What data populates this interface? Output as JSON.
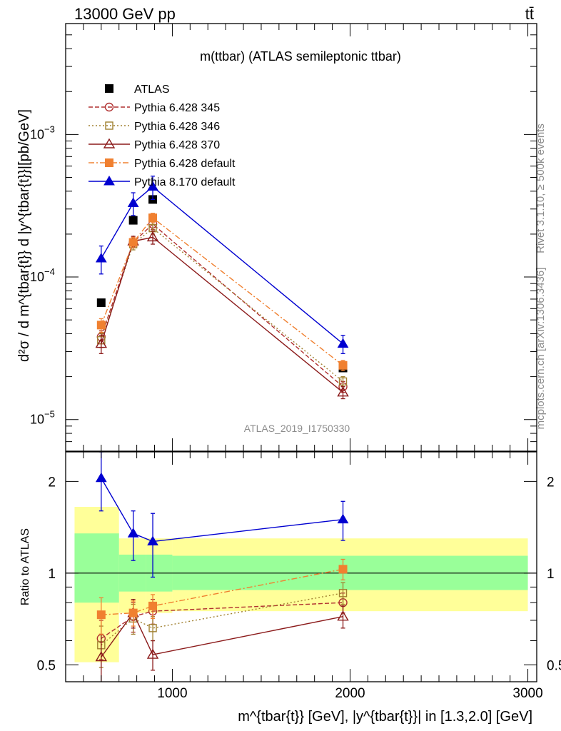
{
  "header": {
    "left": "13000 GeV pp",
    "right": "tt̄"
  },
  "side_labels": {
    "rivet": "Rivet 3.1.10, ≥ 500k events",
    "mcplots": "mcplots.cern.ch [arXiv:1306.3436]"
  },
  "chart_data": [
    {
      "type": "line",
      "panel": "main",
      "title": "m(ttbar) (ATLAS semileptonic ttbar)",
      "watermark": "ATLAS_2019_I1750330",
      "ylabel": "d²σ / d m^{tbar{t}} d |y^{tbar{t}}|[pb/GeV]",
      "yscale": "log",
      "ylim": [
        6e-06,
        0.006
      ],
      "xlim": [
        400,
        3050
      ],
      "ytick_labels": [
        "10^{-5}",
        "10^{-4}",
        "10^{-3}"
      ],
      "legend_position": "top-left",
      "bins": [
        {
          "x": 600,
          "lo": 450,
          "hi": 700
        },
        {
          "x": 780,
          "lo": 700,
          "hi": 850
        },
        {
          "x": 890,
          "lo": 850,
          "hi": 1000
        },
        {
          "x": 1960,
          "lo": 1000,
          "hi": 3000
        }
      ],
      "series": [
        {
          "name": "ATLAS",
          "color": "#000000",
          "marker": "square-filled",
          "dash": "none",
          "values": [
            6.6e-05,
            0.00025,
            0.00035,
            2.3e-05
          ],
          "errors": [
            0.0,
            0.0,
            0.0,
            0.0
          ]
        },
        {
          "name": "Pythia 6.428 345",
          "color": "#b03030",
          "marker": "circle-open",
          "dash": "6,3",
          "values": [
            3.8e-05,
            0.000175,
            0.000235,
            1.7e-05
          ],
          "errors": [
            4e-06,
            1.5e-05,
            2e-05,
            1.5e-06
          ]
        },
        {
          "name": "Pythia 6.428 346",
          "color": "#a08030",
          "marker": "square-open",
          "dash": "2,3",
          "values": [
            3.6e-05,
            0.00017,
            0.00022,
            1.85e-05
          ],
          "errors": [
            4e-06,
            1.5e-05,
            2e-05,
            1.5e-06
          ]
        },
        {
          "name": "Pythia 6.428 370",
          "color": "#8b1a1a",
          "marker": "triangle-open",
          "dash": "none",
          "values": [
            3.4e-05,
            0.000178,
            0.00019,
            1.55e-05
          ],
          "errors": [
            5e-06,
            1.5e-05,
            2e-05,
            1.5e-06
          ]
        },
        {
          "name": "Pythia 6.428 default",
          "color": "#f08030",
          "marker": "square-filled",
          "dash": "8,3,2,3",
          "values": [
            4.6e-05,
            0.000175,
            0.00026,
            2.4e-05
          ],
          "errors": [
            5e-06,
            1.5e-05,
            2e-05,
            2e-06
          ]
        },
        {
          "name": "Pythia 8.170 default",
          "color": "#0000d0",
          "marker": "triangle-filled",
          "dash": "none",
          "values": [
            0.000135,
            0.00033,
            0.00043,
            3.4e-05
          ],
          "errors": [
            3e-05,
            6e-05,
            8e-05,
            5e-06
          ]
        }
      ]
    },
    {
      "type": "line",
      "panel": "ratio",
      "ylabel": "Ratio to ATLAS",
      "xlabel": "m^{tbar{t}} [GeV], |y^{tbar{t}}| in [1.3,2.0] [GeV]",
      "yscale": "log",
      "ylim": [
        0.44,
        2.5
      ],
      "xlim": [
        400,
        3050
      ],
      "yticks": [
        0.5,
        1,
        2
      ],
      "ytick_labels": [
        "0.5",
        "1",
        "2"
      ],
      "xticks": [
        1000,
        2000,
        3000
      ],
      "xtick_labels": [
        "1000",
        "2000",
        "3000"
      ],
      "bands": [
        {
          "lo": 450,
          "hi": 700,
          "inner": [
            0.8,
            1.35
          ],
          "outer": [
            0.51,
            1.65
          ]
        },
        {
          "lo": 700,
          "hi": 850,
          "inner": [
            0.87,
            1.15
          ],
          "outer": [
            0.74,
            1.3
          ]
        },
        {
          "lo": 850,
          "hi": 1000,
          "inner": [
            0.87,
            1.15
          ],
          "outer": [
            0.74,
            1.3
          ]
        },
        {
          "lo": 1000,
          "hi": 3000,
          "inner": [
            0.88,
            1.14
          ],
          "outer": [
            0.75,
            1.3
          ]
        }
      ],
      "series": [
        {
          "name": "Pythia 6.428 345",
          "values": [
            0.61,
            0.72,
            0.75,
            0.8
          ],
          "errors": [
            0.09,
            0.08,
            0.07,
            0.06
          ]
        },
        {
          "name": "Pythia 6.428 346",
          "values": [
            0.58,
            0.71,
            0.66,
            0.86
          ],
          "errors": [
            0.09,
            0.08,
            0.06,
            0.07
          ]
        },
        {
          "name": "Pythia 6.428 370",
          "values": [
            0.53,
            0.74,
            0.54,
            0.72
          ],
          "errors": [
            0.1,
            0.08,
            0.06,
            0.06
          ]
        },
        {
          "name": "Pythia 6.428 default",
          "values": [
            0.73,
            0.74,
            0.78,
            1.03
          ],
          "errors": [
            0.1,
            0.07,
            0.07,
            0.08
          ]
        },
        {
          "name": "Pythia 8.170 default",
          "values": [
            2.05,
            1.35,
            1.27,
            1.5
          ],
          "errors": [
            0.45,
            0.25,
            0.3,
            0.22
          ]
        }
      ]
    }
  ]
}
